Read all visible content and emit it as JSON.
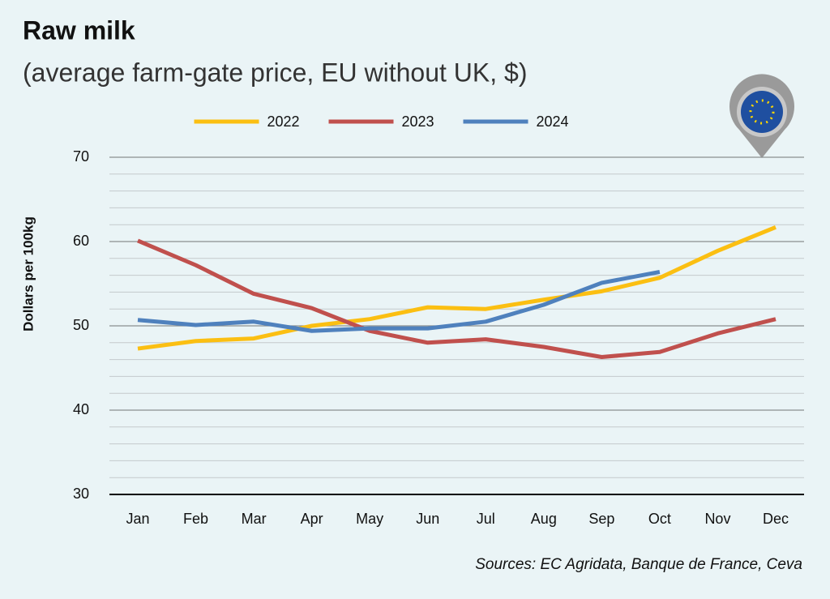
{
  "chart_data": {
    "type": "line",
    "title": "Raw milk",
    "subtitle": "(average farm-gate price, EU without UK, $)",
    "y_label": "Dollars per 100kg",
    "source": "Sources: EC Agridata, Banque de France, Ceva",
    "categories": [
      "Jan",
      "Feb",
      "Mar",
      "Apr",
      "May",
      "Jun",
      "Jul",
      "Aug",
      "Sep",
      "Oct",
      "Nov",
      "Dec"
    ],
    "series": [
      {
        "name": "2022",
        "color": "#fbbf12",
        "values": [
          47.3,
          48.2,
          48.5,
          50.0,
          50.8,
          52.2,
          52.0,
          53.1,
          54.1,
          55.7,
          58.9,
          61.7
        ]
      },
      {
        "name": "2023",
        "color": "#c0504d",
        "values": [
          60.1,
          57.2,
          53.8,
          52.1,
          49.4,
          48.0,
          48.4,
          47.5,
          46.3,
          46.9,
          49.1,
          50.8
        ]
      },
      {
        "name": "2024",
        "color": "#4f81bd",
        "values": [
          50.7,
          50.1,
          50.5,
          49.4,
          49.7,
          49.7,
          50.5,
          52.5,
          55.1,
          56.4,
          null,
          null
        ]
      }
    ],
    "ylim": [
      30,
      70
    ],
    "yticks": [
      30,
      40,
      50,
      60,
      70
    ],
    "yminorticks": [
      32,
      34,
      36,
      38,
      42,
      44,
      46,
      48,
      52,
      54,
      56,
      58,
      62,
      64,
      66,
      68
    ],
    "grid": true,
    "legend": "top"
  }
}
